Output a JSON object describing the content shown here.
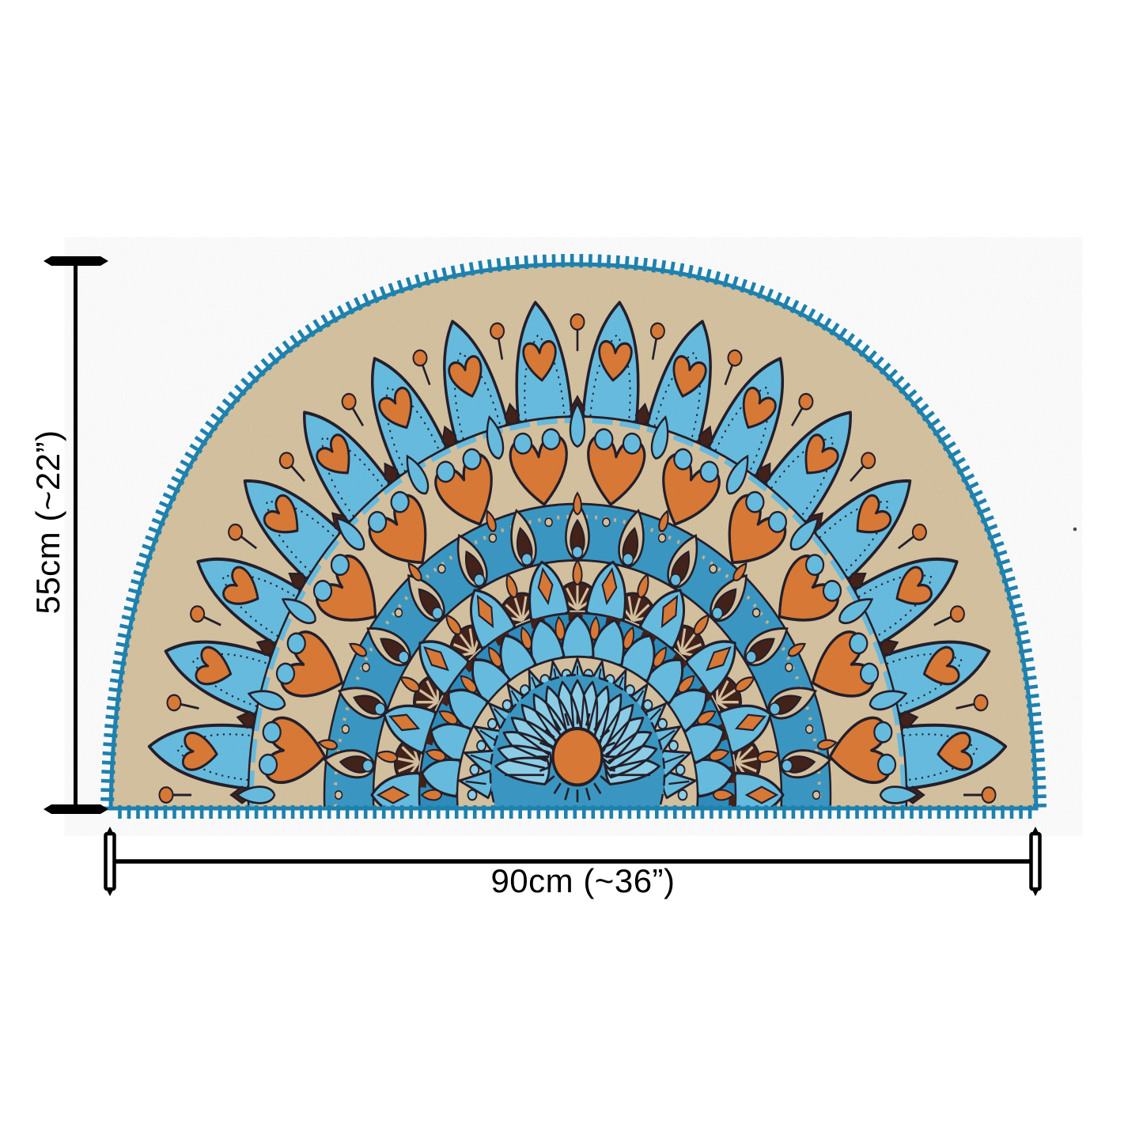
{
  "image": {
    "background": "#ffffff",
    "description": "Half-moon mandala printed doormat with size annotation lines"
  },
  "annotations": {
    "height_label": "55cm (~22”)",
    "width_label": "90cm (~36”)",
    "line_color": "#000000"
  },
  "rug": {
    "shape": "half-moon",
    "border_style": "blanket-stitch",
    "palette": {
      "beige": "#d7c4a2",
      "beige_line": "#cbb68e",
      "sky": "#68bfe3",
      "sky_light": "#8ed2ec",
      "blue": "#2f8fc0",
      "blue_band": "#3b9ac6",
      "teal": "#1e81ae",
      "orange": "#dc7b37",
      "maroon": "#44221a",
      "outline": "#241f2b"
    },
    "rings": [
      {
        "name": "outer-lotus-petals",
        "count": 16
      },
      {
        "name": "heart-band",
        "count": 12
      },
      {
        "name": "peacock-eye-band",
        "count": 13
      },
      {
        "name": "fan-and-lotus-band",
        "count": 9
      },
      {
        "name": "petal-band",
        "count": 13
      },
      {
        "name": "chevron-band",
        "count": 15
      },
      {
        "name": "inner-ray-petals",
        "count": 17
      },
      {
        "name": "center-sun",
        "count": 1
      }
    ]
  }
}
